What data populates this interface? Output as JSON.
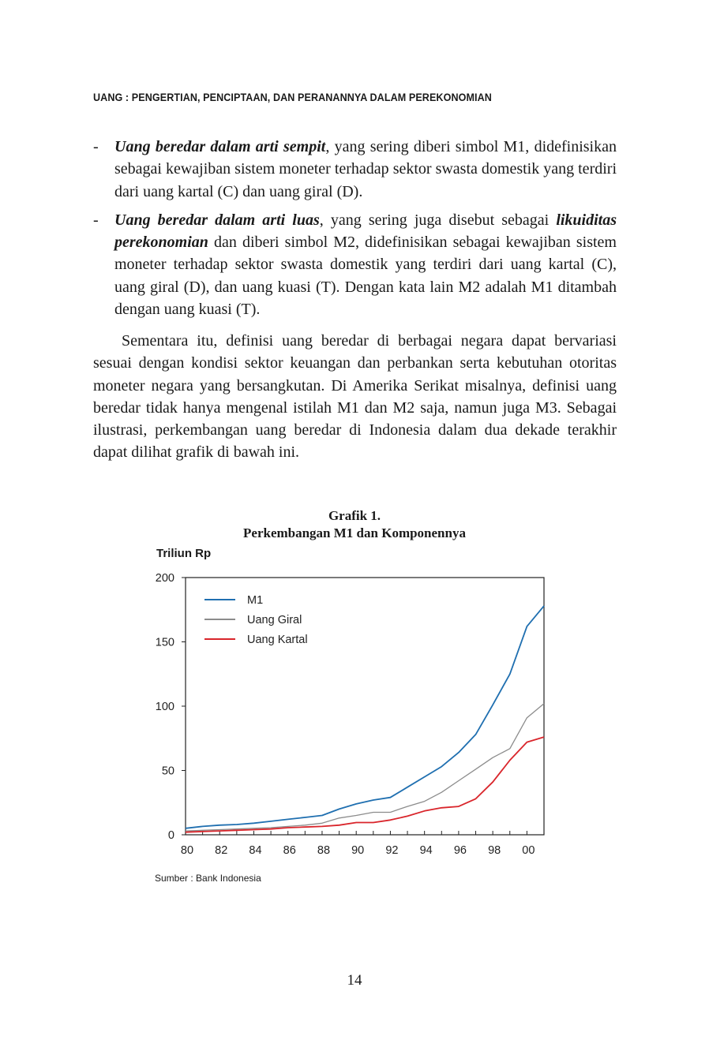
{
  "running_head": "UANG : PENGERTIAN, PENCIPTAAN, DAN PERANANNYA DALAM PEREKONOMIAN",
  "bullets": [
    {
      "term": "Uang beredar dalam arti sempit",
      "text": ", yang sering diberi simbol M1, didefinisikan sebagai kewajiban sistem moneter terhadap sektor swasta domestik yang terdiri dari uang kartal (C) dan uang giral (D)."
    },
    {
      "term": "Uang beredar dalam arti luas",
      "text": ", yang sering juga disebut sebagai ",
      "term2": "likuiditas perekonomian",
      "text2": " dan diberi simbol M2, didefinisikan sebagai kewajiban sistem moneter terhadap sektor swasta domestik yang terdiri dari uang kartal (C), uang giral (D), dan uang kuasi (T). Dengan kata lain M2 adalah M1 ditambah dengan uang kuasi (T)."
    }
  ],
  "paragraph": "Sementara itu, definisi uang beredar di berbagai negara dapat bervariasi sesuai dengan kondisi sektor keuangan dan perbankan serta kebutuhan otoritas moneter negara yang bersangkutan. Di Amerika Serikat misalnya, definisi uang beredar tidak hanya mengenal istilah M1 dan M2 saja, namun juga M3. Sebagai ilustrasi, perkembangan uang beredar di Indonesia dalam dua dekade terakhir dapat dilihat grafik di bawah ini.",
  "chart_data": {
    "type": "line",
    "title": "Grafik 1.",
    "subtitle": "Perkembangan M1 dan Komponennya",
    "ylabel": "Triliun Rp",
    "xlabel": "",
    "ylim": [
      0,
      200
    ],
    "xlim": [
      1980,
      2001
    ],
    "yticks": [
      0,
      50,
      100,
      150,
      200
    ],
    "xticks": [
      {
        "value": 1980,
        "label": "80"
      },
      {
        "value": 1982,
        "label": "82"
      },
      {
        "value": 1984,
        "label": "84"
      },
      {
        "value": 1986,
        "label": "86"
      },
      {
        "value": 1988,
        "label": "88"
      },
      {
        "value": 1990,
        "label": "90"
      },
      {
        "value": 1992,
        "label": "92"
      },
      {
        "value": 1994,
        "label": "94"
      },
      {
        "value": 1996,
        "label": "96"
      },
      {
        "value": 1998,
        "label": "98"
      },
      {
        "value": 2000,
        "label": "00"
      }
    ],
    "legend_position": "top-left",
    "grid": false,
    "x": [
      1980,
      1981,
      1982,
      1983,
      1984,
      1985,
      1986,
      1987,
      1988,
      1989,
      1990,
      1991,
      1992,
      1993,
      1994,
      1995,
      1996,
      1997,
      1998,
      1999,
      2000,
      2001
    ],
    "series": [
      {
        "name": "M1",
        "color": "#1f6fb0",
        "values": [
          5,
          6.5,
          7.5,
          8,
          9,
          10.5,
          12,
          13.5,
          15,
          20,
          24,
          27,
          29,
          37,
          45,
          53,
          64,
          78,
          101,
          125,
          162,
          178
        ]
      },
      {
        "name": "Uang Giral",
        "color": "#8c8c8c",
        "values": [
          3,
          3.5,
          4,
          4.5,
          5,
          5.5,
          6.5,
          7.5,
          9,
          13,
          15,
          17.5,
          17.5,
          22,
          26,
          33,
          42,
          51,
          60,
          67,
          91,
          102
        ]
      },
      {
        "name": "Uang Kartal",
        "color": "#d9252b",
        "values": [
          2,
          2.5,
          3,
          3.5,
          4,
          4.5,
          5.5,
          6,
          6.5,
          7.5,
          9.5,
          9.5,
          11.5,
          14.5,
          18.5,
          21,
          22,
          28,
          41,
          58,
          72,
          76
        ]
      }
    ]
  },
  "source": "Sumber : Bank Indonesia",
  "page_number": "14"
}
